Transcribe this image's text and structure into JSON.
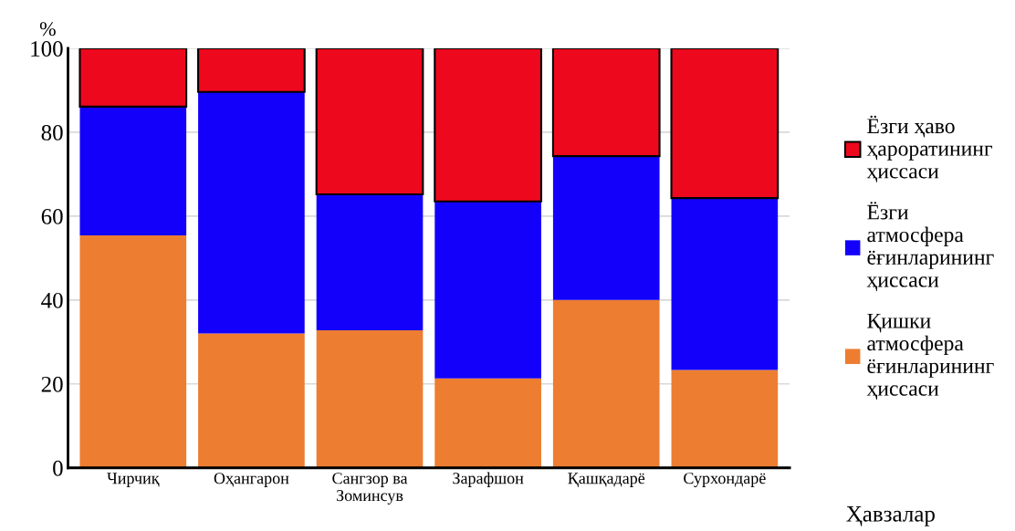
{
  "chart_data": {
    "type": "bar",
    "stacked": true,
    "ylabel": "%",
    "xlabel": "Ҳавзалар",
    "categories": [
      "Чирчиқ",
      "Оҳангарон",
      "Сангзор ва\nЗоминсув",
      "Зарафшон",
      "Қашқадарё",
      "Сурхондарё"
    ],
    "series": [
      {
        "name": "Қишки\nатмосфера\nёғинларининг\nҳиссаси",
        "color": "#ed7d31",
        "values": [
          55.4,
          32.0,
          32.8,
          21.3,
          40.0,
          23.3
        ]
      },
      {
        "name": "Ёзги\nатмосфера\nёғинларининг\nҳиссаси",
        "color": "#1300fa",
        "values": [
          30.7,
          57.6,
          32.4,
          42.2,
          34.3,
          41.0
        ]
      },
      {
        "name": "Ёзги ҳаво\nҳароратининг\nҳиссаси",
        "color": "#ee081e",
        "values": [
          13.9,
          10.4,
          34.8,
          36.5,
          25.7,
          35.7
        ]
      }
    ],
    "ylim": [
      0,
      100
    ],
    "yticks": [
      0,
      20,
      40,
      60,
      80,
      100
    ],
    "grid": "y",
    "legend": "right"
  }
}
